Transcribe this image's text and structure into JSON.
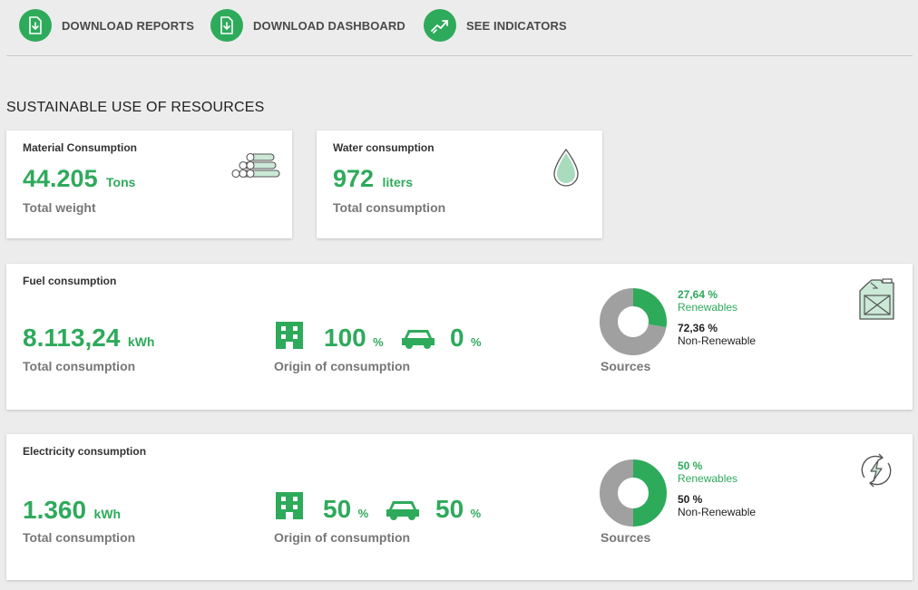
{
  "toolbar": {
    "download_reports": "DOWNLOAD REPORTS",
    "download_dashboard": "DOWNLOAD DASHBOARD",
    "see_indicators": "SEE INDICATORS"
  },
  "section_title": "SUSTAINABLE USE OF RESOURCES",
  "material": {
    "title": "Material Consumption",
    "value": "44.205",
    "unit": "Tons",
    "subtitle": "Total weight",
    "icon": "pipes-icon"
  },
  "water": {
    "title": "Water consumption",
    "value": "972",
    "unit": "liters",
    "subtitle": "Total consumption",
    "icon": "water-drop-icon"
  },
  "fuel": {
    "title": "Fuel consumption",
    "value": "8.113,24",
    "unit": "kWh",
    "subtitle": "Total consumption",
    "origin_building_value": "100",
    "origin_car_value": "0",
    "origin_unit": "%",
    "origin_label": "Origin of consumption",
    "sources_label": "Sources",
    "renewable_pct": "27,64 %",
    "renewable_label": "Renewables",
    "nonrenewable_pct": "72,36 %",
    "nonrenewable_label": "Non-Renewable",
    "renewable_fraction": 0.2764,
    "icon": "fuel-can-icon"
  },
  "electricity": {
    "title": "Electricity consumption",
    "value": "1.360",
    "unit": "kWh",
    "subtitle": "Total consumption",
    "origin_building_value": "50",
    "origin_car_value": "50",
    "origin_unit": "%",
    "origin_label": "Origin of consumption",
    "sources_label": "Sources",
    "renewable_pct": "50 %",
    "renewable_label": "Renewables",
    "nonrenewable_pct": "50 %",
    "nonrenewable_label": "Non-Renewable",
    "renewable_fraction": 0.5,
    "icon": "renewable-energy-icon"
  },
  "colors": {
    "accent": "#2eaa5b",
    "donut_gray": "#a0a0a0",
    "background": "#ececec"
  }
}
